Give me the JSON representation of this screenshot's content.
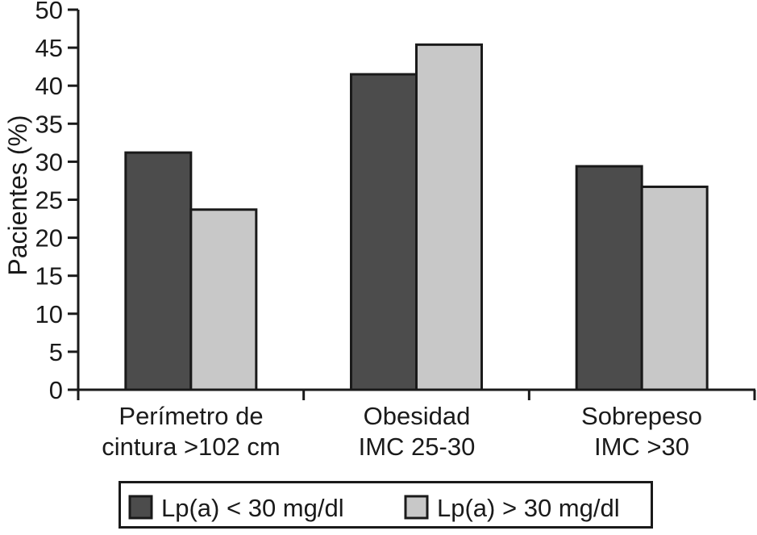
{
  "chart_data": {
    "type": "bar",
    "title": "",
    "xlabel": "",
    "ylabel": "Pacientes (%)",
    "ylim": [
      0,
      50
    ],
    "yticks": [
      0,
      5,
      10,
      15,
      20,
      25,
      30,
      35,
      40,
      45,
      50
    ],
    "grid": false,
    "legend_position": "bottom-boxed",
    "categories": [
      "Perímetro de cintura >102 cm",
      "Obesidad IMC 25-30",
      "Sobrepeso IMC >30"
    ],
    "category_lines": [
      [
        "Perímetro de",
        "cintura >102 cm"
      ],
      [
        "Obesidad",
        "IMC 25-30"
      ],
      [
        "Sobrepeso",
        "IMC >30"
      ]
    ],
    "series": [
      {
        "name": "Lp(a) < 30 mg/dl",
        "color": "#4c4c4c",
        "values": [
          31.2,
          41.5,
          29.4
        ]
      },
      {
        "name": "Lp(a) > 30 mg/dl",
        "color": "#c8c8c8",
        "values": [
          23.7,
          45.4,
          26.7
        ]
      }
    ],
    "bar_border_color": "#1a1a1a",
    "axis_color": "#1a1a1a",
    "text_color": "#1a1a1a"
  }
}
